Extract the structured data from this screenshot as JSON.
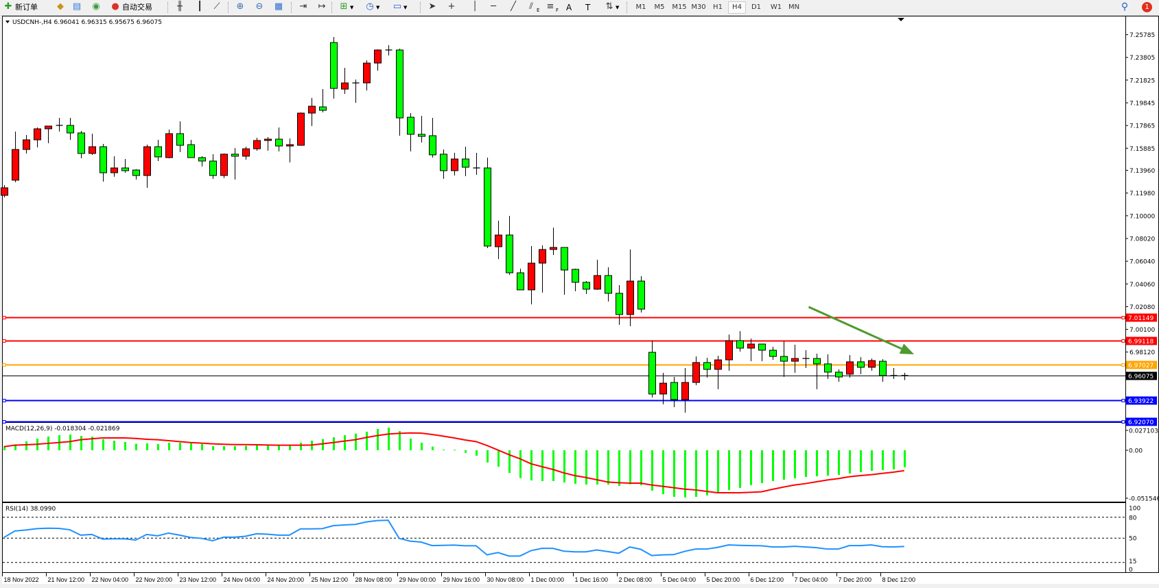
{
  "toolbar": {
    "items": [
      {
        "icon": "new-order-icon",
        "label": "新订单"
      },
      {
        "icon": "market-watch-icon"
      },
      {
        "icon": "data-window-icon"
      },
      {
        "icon": "signals-icon"
      },
      {
        "icon": "auto-trading-icon",
        "label": "自动交易"
      },
      {
        "icon": "bar-chart-icon"
      },
      {
        "icon": "candlestick-icon"
      },
      {
        "icon": "line-chart-icon"
      },
      {
        "icon": "zoom-in-icon"
      },
      {
        "icon": "zoom-out-icon"
      },
      {
        "icon": "tile-windows-icon"
      },
      {
        "icon": "chart-shift-icon"
      },
      {
        "icon": "auto-scroll-icon"
      },
      {
        "icon": "indicators-icon"
      },
      {
        "icon": "periods-clock-icon"
      },
      {
        "icon": "templates-icon"
      },
      {
        "icon": "cursor-icon"
      },
      {
        "icon": "crosshair-icon"
      },
      {
        "icon": "vertical-line-icon"
      },
      {
        "icon": "horizontal-line-icon"
      },
      {
        "icon": "trendline-icon"
      },
      {
        "icon": "equidistant-channel-icon",
        "label": "E"
      },
      {
        "icon": "fibonacci-icon",
        "label": "F"
      },
      {
        "icon": "text-icon",
        "label": "A"
      },
      {
        "icon": "text-label-icon",
        "label": "T"
      },
      {
        "icon": "arrows-icon"
      }
    ],
    "timeframes": [
      "M1",
      "M5",
      "M15",
      "M30",
      "H1",
      "H4",
      "D1",
      "W1",
      "MN"
    ],
    "active_timeframe": "H4",
    "notification_count": "1"
  },
  "chart_window": {
    "title": "USDCNH-,H4  6.96041 6.96315 6.95675 6.96075"
  },
  "chart_data": {
    "type": "candlestick",
    "symbol": "USDCNH-",
    "timeframe": "H4",
    "colors": {
      "bull_body": "#ff0000",
      "bear_body": "#00ff00",
      "outline": "#000000",
      "background": "#ffffff"
    },
    "price_axis_ticks": [
      "7.25785",
      "7.23805",
      "7.21825",
      "7.19845",
      "7.17865",
      "7.15885",
      "7.13960",
      "7.11980",
      "7.10000",
      "7.08020",
      "7.06040",
      "7.04060",
      "7.02080",
      "7.00100",
      "6.98120"
    ],
    "ohlc": [
      [
        7.1178,
        7.1268,
        7.116,
        7.1244
      ],
      [
        7.131,
        7.1734,
        7.1292,
        7.1578
      ],
      [
        7.1578,
        7.1704,
        7.1543,
        7.1662
      ],
      [
        7.1662,
        7.177,
        7.1596,
        7.1758
      ],
      [
        7.1758,
        7.1782,
        7.1632,
        7.1782
      ],
      [
        7.1788,
        7.1853,
        7.1734,
        7.1788
      ],
      [
        7.1788,
        7.1853,
        7.1662,
        7.1722
      ],
      [
        7.1722,
        7.174,
        7.1501,
        7.1543
      ],
      [
        7.1543,
        7.1716,
        7.1531,
        7.1602
      ],
      [
        7.1602,
        7.1626,
        7.1298,
        7.1375
      ],
      [
        7.1375,
        7.1519,
        7.134,
        7.1417
      ],
      [
        7.1417,
        7.1495,
        7.1375,
        7.1393
      ],
      [
        7.1399,
        7.1405,
        7.1316,
        7.1351
      ],
      [
        7.1351,
        7.162,
        7.1244,
        7.1602
      ],
      [
        7.1602,
        7.1662,
        7.1477,
        7.1513
      ],
      [
        7.1507,
        7.1752,
        7.1501,
        7.1716
      ],
      [
        7.1716,
        7.1823,
        7.1555,
        7.1614
      ],
      [
        7.162,
        7.1662,
        7.1507,
        7.1507
      ],
      [
        7.1507,
        7.1519,
        7.1429,
        7.1477
      ],
      [
        7.1477,
        7.1537,
        7.1322,
        7.1351
      ],
      [
        7.1351,
        7.1543,
        7.1328,
        7.1537
      ],
      [
        7.1537,
        7.159,
        7.1316,
        7.1519
      ],
      [
        7.1519,
        7.1602,
        7.1489,
        7.1584
      ],
      [
        7.1584,
        7.168,
        7.1567,
        7.1656
      ],
      [
        7.1656,
        7.1686,
        7.1567,
        7.1668
      ],
      [
        7.1668,
        7.177,
        7.1561,
        7.1608
      ],
      [
        7.1608,
        7.1674,
        7.1465,
        7.162
      ],
      [
        7.1614,
        7.1901,
        7.1614,
        7.1895
      ],
      [
        7.1895,
        7.2027,
        7.1782,
        7.1955
      ],
      [
        7.1949,
        7.2104,
        7.1901,
        7.1919
      ],
      [
        7.251,
        7.2558,
        7.2021,
        7.211
      ],
      [
        7.2104,
        7.2289,
        7.2062,
        7.2158
      ],
      [
        7.2158,
        7.2188,
        7.1985,
        7.2158
      ],
      [
        7.2158,
        7.2355,
        7.2092,
        7.2331
      ],
      [
        7.2331,
        7.2451,
        7.2265,
        7.2445
      ],
      [
        7.2445,
        7.2487,
        7.2397,
        7.2445
      ],
      [
        7.2445,
        7.2457,
        7.1698,
        7.1853
      ],
      [
        7.1859,
        7.1895,
        7.1561,
        7.171
      ],
      [
        7.171,
        7.1871,
        7.1638,
        7.1692
      ],
      [
        7.1698,
        7.1853,
        7.1507,
        7.1531
      ],
      [
        7.1537,
        7.1578,
        7.1322,
        7.1393
      ],
      [
        7.1393,
        7.1549,
        7.1351,
        7.1495
      ],
      [
        7.1495,
        7.1602,
        7.1345,
        7.1423
      ],
      [
        7.1417,
        7.1549,
        7.1357,
        7.1417
      ],
      [
        7.1417,
        7.1507,
        7.0718,
        7.0736
      ],
      [
        7.073,
        7.0957,
        7.0623,
        7.0832
      ],
      [
        7.0832,
        7.0999,
        7.0485,
        7.0503
      ],
      [
        7.0503,
        7.0539,
        7.0354,
        7.0354
      ],
      [
        7.0354,
        7.0736,
        7.0228,
        7.0587
      ],
      [
        7.0587,
        7.0742,
        7.033,
        7.0706
      ],
      [
        7.0706,
        7.0897,
        7.0658,
        7.0724
      ],
      [
        7.0724,
        7.0724,
        7.0312,
        7.0527
      ],
      [
        7.0533,
        7.0539,
        7.0342,
        7.042
      ],
      [
        7.042,
        7.0431,
        7.0318,
        7.036
      ],
      [
        7.036,
        7.0617,
        7.0354,
        7.0479
      ],
      [
        7.0479,
        7.0551,
        7.0252,
        7.0324
      ],
      [
        7.0324,
        7.0396,
        7.0049,
        7.0139
      ],
      [
        7.0139,
        7.0706,
        7.0037,
        7.0431
      ],
      [
        7.0431,
        7.0473,
        7.0157,
        7.0186
      ],
      [
        6.981,
        6.9912,
        6.9416,
        6.9446
      ],
      [
        6.9446,
        6.9631,
        6.9356,
        6.9541
      ],
      [
        6.9547,
        6.9595,
        6.9332,
        6.9398
      ],
      [
        6.9398,
        6.9673,
        6.9284,
        6.9547
      ],
      [
        6.9547,
        6.9774,
        6.9523,
        6.9721
      ],
      [
        6.9721,
        6.9762,
        6.9589,
        6.9661
      ],
      [
        6.9661,
        6.978,
        6.9488,
        6.9744
      ],
      [
        6.9744,
        6.9965,
        6.9649,
        6.9912
      ],
      [
        6.9912,
        6.9995,
        6.9816,
        6.9846
      ],
      [
        6.9846,
        6.993,
        6.9732,
        6.9882
      ],
      [
        6.9882,
        6.9882,
        6.9732,
        6.9828
      ],
      [
        6.9828,
        6.9858,
        6.9744,
        6.9774
      ],
      [
        6.9774,
        6.9906,
        6.9595,
        6.9732
      ],
      [
        6.9732,
        6.9876,
        6.9631,
        6.9756
      ],
      [
        6.9756,
        6.9828,
        6.9673,
        6.9756
      ],
      [
        6.9756,
        6.9798,
        6.9488,
        6.9709
      ],
      [
        6.9709,
        6.9792,
        6.9577,
        6.9637
      ],
      [
        6.9637,
        6.9661,
        6.9553,
        6.9595
      ],
      [
        6.9619,
        6.9786,
        6.9589,
        6.9727
      ],
      [
        6.9727,
        6.9768,
        6.9619,
        6.9679
      ],
      [
        6.9679,
        6.9756,
        6.9649,
        6.9738
      ],
      [
        6.9732,
        6.975,
        6.9553,
        6.9607
      ],
      [
        6.9607,
        6.9673,
        6.9577,
        6.9604
      ],
      [
        6.96041,
        6.96315,
        6.95675,
        6.96075
      ]
    ],
    "time_labels": [
      {
        "bar": 0,
        "text": "18 Nov 2022"
      },
      {
        "bar": 4,
        "text": "21 Nov 12:00"
      },
      {
        "bar": 8,
        "text": "22 Nov 04:00"
      },
      {
        "bar": 12,
        "text": "22 Nov 20:00"
      },
      {
        "bar": 16,
        "text": "23 Nov 12:00"
      },
      {
        "bar": 20,
        "text": "24 Nov 04:00"
      },
      {
        "bar": 24,
        "text": "24 Nov 20:00"
      },
      {
        "bar": 28,
        "text": "25 Nov 12:00"
      },
      {
        "bar": 32,
        "text": "28 Nov 08:00"
      },
      {
        "bar": 36,
        "text": "29 Nov 00:00"
      },
      {
        "bar": 40,
        "text": "29 Nov 16:00"
      },
      {
        "bar": 44,
        "text": "30 Nov 08:00"
      },
      {
        "bar": 48,
        "text": "1 Dec 00:00"
      },
      {
        "bar": 52,
        "text": "1 Dec 16:00"
      },
      {
        "bar": 56,
        "text": "2 Dec 08:00"
      },
      {
        "bar": 60,
        "text": "5 Dec 04:00"
      },
      {
        "bar": 64,
        "text": "5 Dec 20:00"
      },
      {
        "bar": 68,
        "text": "6 Dec 12:00"
      },
      {
        "bar": 72,
        "text": "7 Dec 04:00"
      },
      {
        "bar": 76,
        "text": "7 Dec 20:00"
      },
      {
        "bar": 80,
        "text": "8 Dec 12:00"
      }
    ],
    "horizontal_lines": [
      {
        "price": 7.01149,
        "label": "7.01149",
        "color": "#ff0000"
      },
      {
        "price": 6.99118,
        "label": "6.99118",
        "color": "#ff0000"
      },
      {
        "price": 6.97027,
        "label": "6.97027",
        "color": "#ffa500"
      },
      {
        "price": 6.93922,
        "label": "6.93922",
        "color": "#0000ff"
      },
      {
        "price": 6.9207,
        "label": "6.92070",
        "color": "#0000ff"
      }
    ],
    "bid_line": {
      "price": 6.96075,
      "label": "6.96075",
      "color": "#000000"
    },
    "arrow": {
      "from": {
        "bar": 73.3,
        "price": 7.0205
      },
      "to": {
        "bar": 82.9,
        "price": 6.9792
      },
      "color": "#4e9a2e"
    },
    "macd": {
      "title": "MACD(12,26,9) -0.018304 -0.021869",
      "axis_labels": [
        "0.027103",
        "0.00",
        "-0.051546"
      ],
      "range": [
        -0.051546,
        0.027103
      ],
      "histogram_color": "#00ff00",
      "signal_color": "#ff0000",
      "main": [
        0.0039,
        0.0064,
        0.0096,
        0.0125,
        0.0147,
        0.0162,
        0.0169,
        0.0154,
        0.0145,
        0.0118,
        0.0103,
        0.0088,
        0.0069,
        0.0074,
        0.0066,
        0.0081,
        0.0081,
        0.0076,
        0.0066,
        0.0044,
        0.0044,
        0.0044,
        0.0047,
        0.0054,
        0.0054,
        0.0049,
        0.0049,
        0.0081,
        0.0103,
        0.012,
        0.014,
        0.0162,
        0.0179,
        0.0199,
        0.0228,
        0.0243,
        0.0206,
        0.0125,
        0.0081,
        0.0039,
        0.0007,
        0.0005,
        -0.0027,
        -0.0059,
        -0.0132,
        -0.0176,
        -0.0243,
        -0.0299,
        -0.0324,
        -0.0331,
        -0.0331,
        -0.0346,
        -0.036,
        -0.0368,
        -0.0368,
        -0.0368,
        -0.0382,
        -0.0365,
        -0.0375,
        -0.0434,
        -0.0471,
        -0.05,
        -0.0507,
        -0.05,
        -0.0485,
        -0.0463,
        -0.0426,
        -0.0404,
        -0.0375,
        -0.0353,
        -0.0331,
        -0.0316,
        -0.0301,
        -0.0287,
        -0.0279,
        -0.0272,
        -0.0265,
        -0.025,
        -0.0235,
        -0.0221,
        -0.0213,
        -0.0206,
        -0.018304
      ],
      "signal": [
        0.0039,
        0.0054,
        0.0059,
        0.0064,
        0.0074,
        0.0083,
        0.0093,
        0.0113,
        0.0123,
        0.0132,
        0.0132,
        0.0132,
        0.0127,
        0.0118,
        0.0113,
        0.0103,
        0.0093,
        0.0083,
        0.0076,
        0.0069,
        0.0064,
        0.0061,
        0.0061,
        0.0059,
        0.0056,
        0.0054,
        0.0054,
        0.0054,
        0.0056,
        0.0069,
        0.0083,
        0.0098,
        0.0113,
        0.0137,
        0.0157,
        0.0174,
        0.0181,
        0.0186,
        0.0184,
        0.0169,
        0.0152,
        0.0132,
        0.011,
        0.0093,
        0.0051,
        0.0002,
        -0.0047,
        -0.0091,
        -0.0145,
        -0.0176,
        -0.0206,
        -0.0243,
        -0.0272,
        -0.0292,
        -0.0316,
        -0.0341,
        -0.0348,
        -0.0353,
        -0.0353,
        -0.0373,
        -0.0387,
        -0.0402,
        -0.0417,
        -0.0426,
        -0.0441,
        -0.0456,
        -0.0456,
        -0.0456,
        -0.0451,
        -0.0446,
        -0.0419,
        -0.0395,
        -0.0373,
        -0.0358,
        -0.0338,
        -0.0319,
        -0.0304,
        -0.0284,
        -0.0272,
        -0.0262,
        -0.0248,
        -0.0235,
        -0.021869
      ]
    },
    "rsi": {
      "title": "RSI(14) 38.0990",
      "axis_labels": [
        "100",
        "80",
        "50",
        "15",
        "0"
      ],
      "levels": [
        80,
        50,
        15
      ],
      "range": [
        0,
        100
      ],
      "color": "#1e90ff",
      "values": [
        51,
        60.3,
        61.7,
        63.7,
        64.3,
        64,
        62,
        54.3,
        55.3,
        48.7,
        49,
        49,
        47.3,
        55.3,
        53.3,
        57.3,
        54.3,
        51,
        49.7,
        46.3,
        51.3,
        51.3,
        52.7,
        56.3,
        55.7,
        54.3,
        54.3,
        63.3,
        63.3,
        63.7,
        68,
        69,
        69.7,
        73.3,
        75.3,
        75.7,
        49.7,
        45.7,
        44.3,
        39.3,
        39.7,
        40,
        39,
        39,
        26,
        29.3,
        24.3,
        24.3,
        32,
        35.3,
        35.3,
        31.3,
        30.3,
        30.3,
        33,
        30.7,
        28.3,
        37.3,
        34,
        25,
        26,
        26.3,
        31,
        34.3,
        34.3,
        36.7,
        40.3,
        39.7,
        39.3,
        39,
        37.3,
        37.3,
        38.3,
        37.3,
        36.3,
        34.3,
        34.3,
        39.3,
        39.3,
        40.3,
        37.7,
        37.3,
        38.099
      ]
    }
  }
}
